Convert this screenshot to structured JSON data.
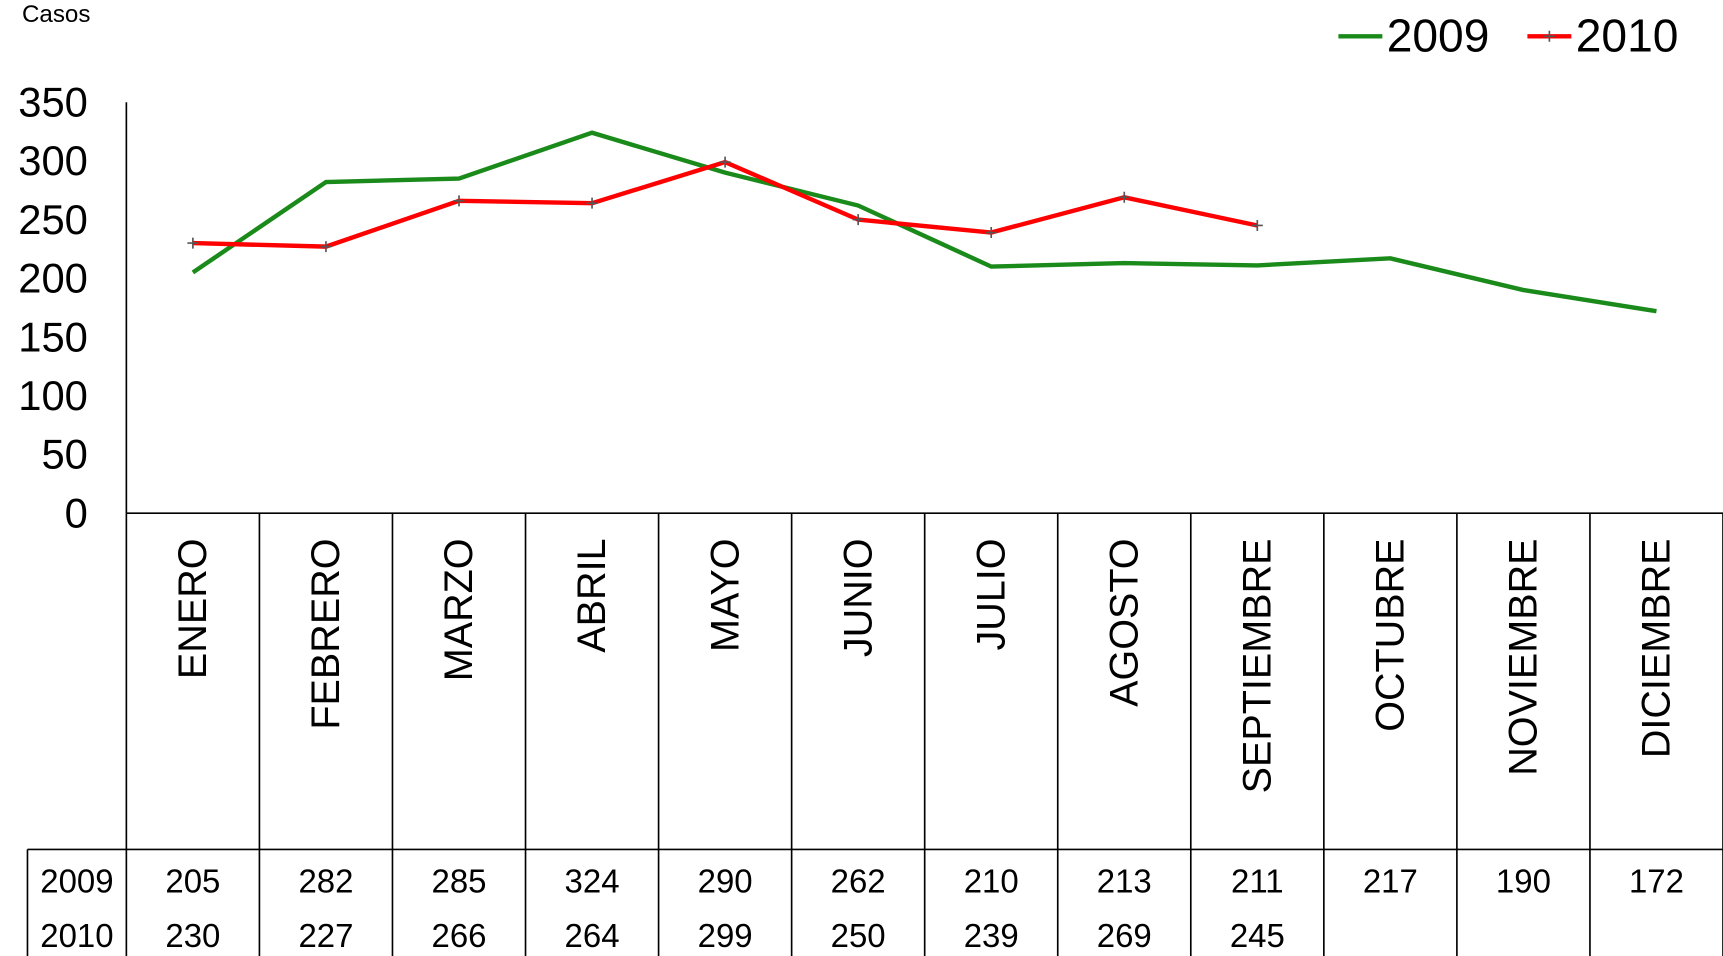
{
  "chart_data": {
    "type": "line",
    "y_axis_label": "Casos",
    "categories": [
      "ENERO",
      "FEBRERO",
      "MARZO",
      "ABRIL",
      "MAYO",
      "JUNIO",
      "JULIO",
      "AGOSTO",
      "SEPTIEMBRE",
      "OCTUBRE",
      "NOVIEMBRE",
      "DICIEMBRE"
    ],
    "series": [
      {
        "name": "2009",
        "color": "#1a8a1a",
        "marker": "none",
        "values": [
          205,
          282,
          285,
          324,
          290,
          262,
          210,
          213,
          211,
          217,
          190,
          172
        ]
      },
      {
        "name": "2010",
        "color": "#ff0000",
        "marker": "plus",
        "values": [
          230,
          227,
          266,
          264,
          299,
          250,
          239,
          269,
          245,
          null,
          null,
          null
        ]
      }
    ],
    "ylim": [
      0,
      350
    ],
    "yticks": [
      0,
      50,
      100,
      150,
      200,
      250,
      300,
      350
    ],
    "grid": false,
    "legend": "top-right",
    "data_table": true
  }
}
